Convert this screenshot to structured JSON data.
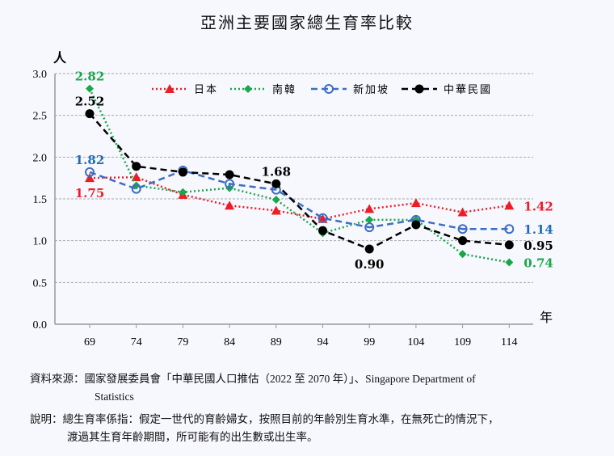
{
  "chart_data": {
    "type": "line",
    "title": "亞洲主要國家總生育率比較",
    "ylabel": "人",
    "xlabel": "年",
    "categories": [
      "69",
      "74",
      "79",
      "84",
      "89",
      "94",
      "99",
      "104",
      "109",
      "114"
    ],
    "ylim": [
      0,
      3.0
    ],
    "yticks": [
      "0.0",
      "0.5",
      "1.0",
      "1.5",
      "2.0",
      "2.5",
      "3.0"
    ],
    "grid": true,
    "legend_placement": "top",
    "series": [
      {
        "name": "日本",
        "color": "#ee1c25",
        "marker": "triangle",
        "dash": "dotted",
        "values": [
          1.75,
          1.76,
          1.55,
          1.42,
          1.36,
          1.26,
          1.38,
          1.45,
          1.34,
          1.42
        ],
        "labels": [
          {
            "index": 0,
            "text": "1.75",
            "pos": "below"
          },
          {
            "index": 9,
            "text": "1.42",
            "pos": "right"
          }
        ]
      },
      {
        "name": "南韓",
        "color": "#1aa64a",
        "marker": "diamond",
        "dash": "dotted",
        "values": [
          2.82,
          1.66,
          1.58,
          1.63,
          1.49,
          1.09,
          1.25,
          1.25,
          0.84,
          0.74
        ],
        "labels": [
          {
            "index": 0,
            "text": "2.82",
            "pos": "above"
          },
          {
            "index": 9,
            "text": "0.74",
            "pos": "right"
          }
        ]
      },
      {
        "name": "新加坡",
        "color": "#3d6ec4",
        "marker": "open-circle",
        "dash": "dashed",
        "values": [
          1.82,
          1.62,
          1.84,
          1.68,
          1.61,
          1.27,
          1.16,
          1.25,
          1.14,
          1.14
        ],
        "labels": [
          {
            "index": 0,
            "text": "1.82",
            "pos": "above"
          },
          {
            "index": 9,
            "text": "1.14",
            "pos": "right"
          }
        ]
      },
      {
        "name": "中華民國",
        "color": "#000000",
        "marker": "circle",
        "dash": "dashed",
        "values": [
          2.52,
          1.89,
          1.82,
          1.79,
          1.68,
          1.12,
          0.9,
          1.19,
          1.0,
          0.95
        ],
        "labels": [
          {
            "index": 0,
            "text": "2.52",
            "pos": "above"
          },
          {
            "index": 4,
            "text": "1.68",
            "pos": "above"
          },
          {
            "index": 6,
            "text": "0.90",
            "pos": "below"
          },
          {
            "index": 9,
            "text": "0.95",
            "pos": "right"
          }
        ]
      }
    ]
  },
  "notes": {
    "source_line1": "資料來源：國家發展委員會「中華民國人口推估（2022 至 2070 年）」、Singapore Department of",
    "source_line2": "Statistics",
    "explain_line1": "說明：總生育率係指：假定一世代的育齡婦女，按照目前的年齡別生育水準，在無死亡的情況下，",
    "explain_line2": "渡過其生育年齡期間，所可能有的出生數或出生率。"
  }
}
